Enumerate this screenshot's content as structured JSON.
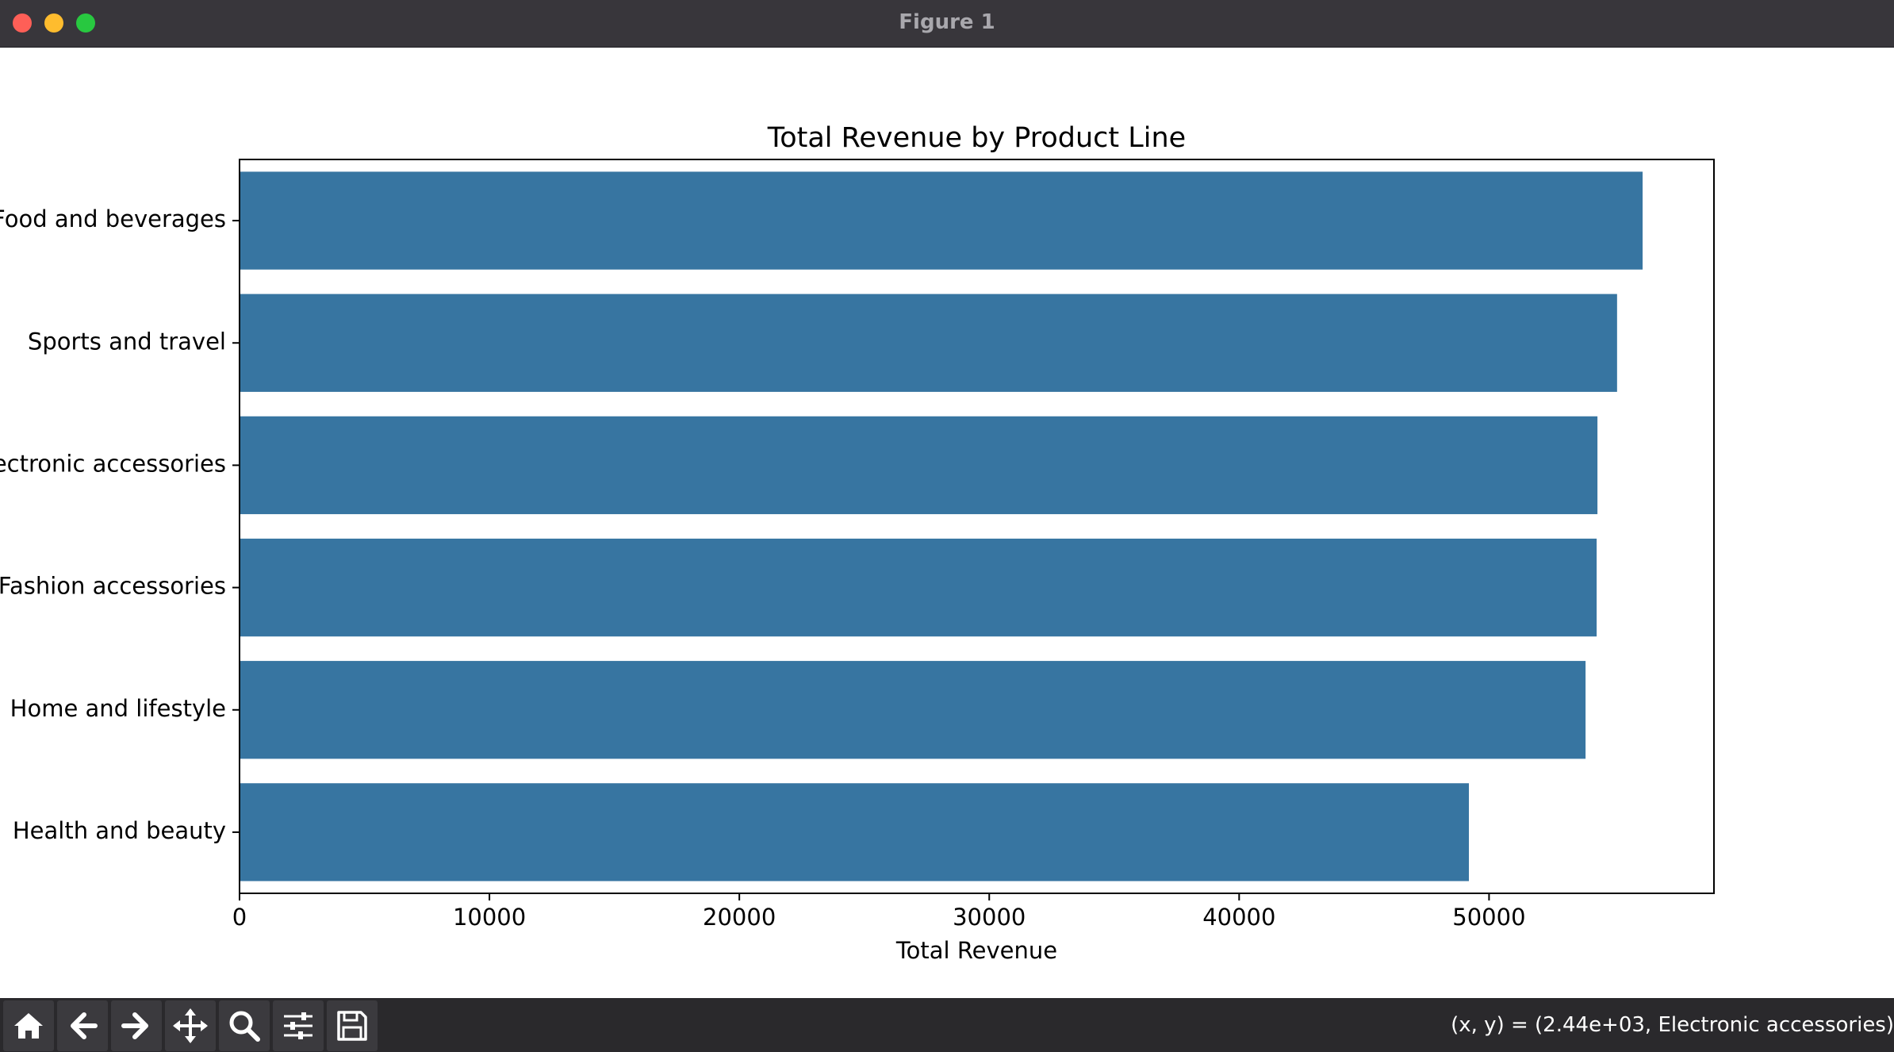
{
  "window": {
    "title": "Figure 1"
  },
  "toolbar": {
    "buttons": [
      {
        "name": "home-button",
        "icon": "home-icon"
      },
      {
        "name": "back-button",
        "icon": "arrow-left-icon"
      },
      {
        "name": "forward-button",
        "icon": "arrow-right-icon"
      },
      {
        "name": "pan-button",
        "icon": "move-icon"
      },
      {
        "name": "zoom-button",
        "icon": "magnifier-icon"
      },
      {
        "name": "configure-subplots-button",
        "icon": "sliders-icon"
      },
      {
        "name": "save-button",
        "icon": "floppy-disk-icon"
      }
    ],
    "coords": "(x, y) = (2.44e+03, Electronic accessories)"
  },
  "chart_data": {
    "type": "bar",
    "orientation": "horizontal",
    "title": "Total Revenue by Product Line",
    "xlabel": "Total Revenue",
    "ylabel": "",
    "categories": [
      "Food and beverages",
      "Sports and travel",
      "Electronic accessories",
      "Fashion accessories",
      "Home and lifestyle",
      "Health and beauty"
    ],
    "values": [
      56145,
      55123,
      54338,
      54306,
      53862,
      49194
    ],
    "xlim": [
      0,
      59000
    ],
    "xticks": [
      0,
      10000,
      20000,
      30000,
      40000,
      50000
    ],
    "grid": false,
    "bar_color": "#3775a1"
  }
}
